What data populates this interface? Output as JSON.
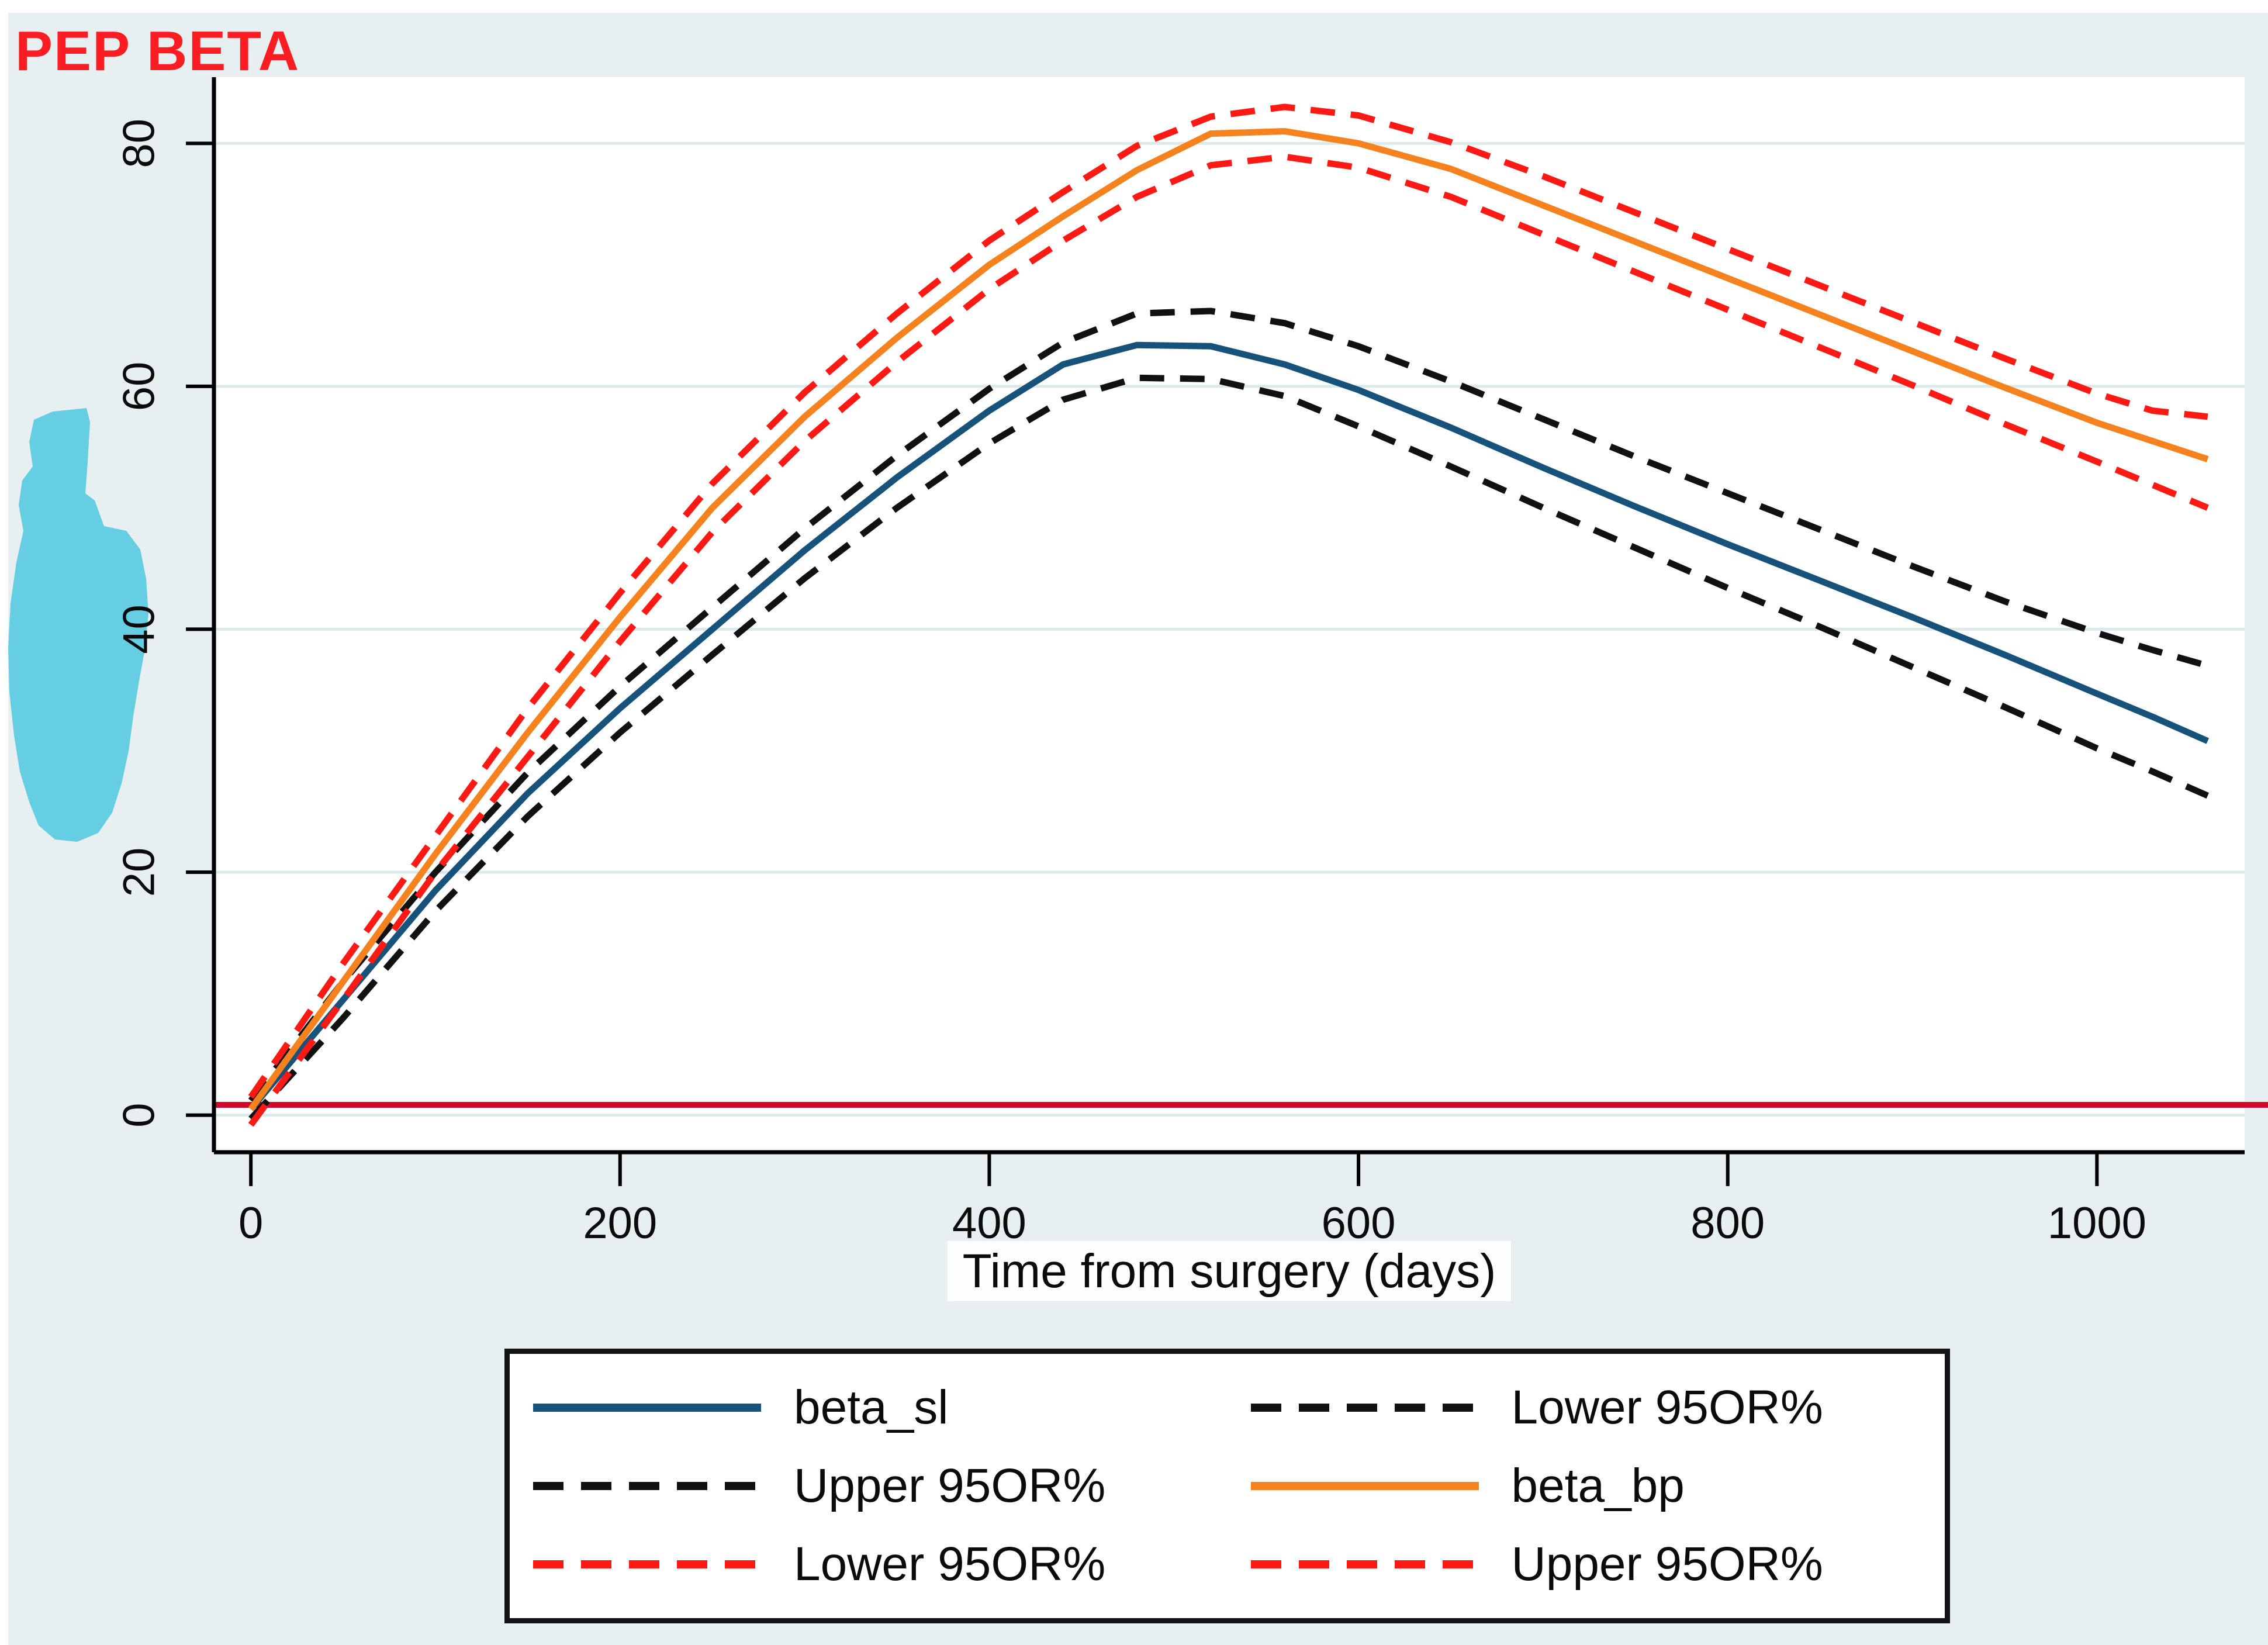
{
  "page": {
    "title": "PEP BETA",
    "title_color": "#fb1d22",
    "background_color": "#e7eff0",
    "plot_background": "#ffffff",
    "gridline_color": "#dbe9eb",
    "axis_color": "#000000"
  },
  "chart_data": {
    "type": "line",
    "title": "PEP BETA",
    "xlabel": "Time from surgery (days)",
    "ylabel": "",
    "xlim": [
      -20,
      1080
    ],
    "ylim": [
      -3.05,
      85.45
    ],
    "x_ticks": [
      "0",
      "200",
      "400",
      "600",
      "800",
      "1000"
    ],
    "x_tick_values": [
      0,
      200,
      400,
      600,
      800,
      1000
    ],
    "y_ticks": [
      "0",
      "20",
      "40",
      "60",
      "80"
    ],
    "y_tick_values": [
      0,
      20,
      40,
      60,
      80
    ],
    "grid": "horizontal",
    "legend_position": "bottom",
    "reference_line": {
      "y": 0.85,
      "color": "#ce0a2c",
      "width": 10
    },
    "x": [
      0,
      50,
      100,
      150,
      200,
      250,
      300,
      350,
      400,
      440,
      480,
      520,
      560,
      600,
      650,
      700,
      750,
      800,
      850,
      900,
      950,
      1000,
      1030,
      1060
    ],
    "series": [
      {
        "name": "beta_sl",
        "color": "#17527a",
        "style": "solid",
        "width": 11,
        "values": [
          0.5,
          9.5,
          18.5,
          26.5,
          33.5,
          40,
          46.5,
          52.5,
          58,
          61.8,
          63.4,
          63.3,
          61.8,
          59.7,
          56.6,
          53.3,
          50.1,
          47,
          44,
          41,
          37.9,
          34.7,
          32.8,
          30.8
        ]
      },
      {
        "name": "Upper 95OR%",
        "color": "#111111",
        "style": "dashed",
        "width": 11,
        "values": [
          1.2,
          11,
          20,
          28.2,
          35.3,
          41.8,
          48.3,
          54.3,
          59.8,
          63.6,
          66,
          66.2,
          65.2,
          63.3,
          60.4,
          57.3,
          54.2,
          51.2,
          48.2,
          45.2,
          42.3,
          39.7,
          38.3,
          37
        ]
      },
      {
        "name": "Lower 95OR%",
        "color": "#111111",
        "style": "dashed",
        "width": 11,
        "values": [
          -0.3,
          8,
          16.8,
          24.6,
          31.5,
          37.9,
          44.2,
          50,
          55.3,
          58.9,
          60.7,
          60.6,
          59.2,
          56.7,
          53.4,
          50,
          46.7,
          43.4,
          40.2,
          36.9,
          33.6,
          30.2,
          28.3,
          26.3
        ]
      },
      {
        "name": "beta_bp",
        "color": "#f5821f",
        "style": "solid",
        "width": 11,
        "values": [
          0.5,
          11,
          21.5,
          31.5,
          41,
          50,
          57.5,
          64,
          70,
          74,
          77.8,
          80.8,
          81,
          80,
          77.9,
          74.9,
          71.9,
          68.9,
          65.9,
          62.9,
          59.9,
          57,
          55.5,
          54
        ]
      },
      {
        "name": "Upper 95OR%",
        "color": "#fe1a14",
        "style": "dashed",
        "width": 11,
        "values": [
          1.5,
          12.5,
          23,
          33.5,
          43,
          52,
          59.5,
          66,
          72,
          76,
          79.8,
          82.2,
          83,
          82.3,
          80.1,
          77.3,
          74.3,
          71.3,
          68.3,
          65.3,
          62.3,
          59.4,
          58,
          57.5
        ]
      },
      {
        "name": "Lower 95OR%",
        "color": "#fe1a14",
        "style": "dashed",
        "width": 11,
        "values": [
          -0.8,
          9.5,
          20,
          29.5,
          39,
          48,
          55.5,
          62,
          68,
          72,
          75.6,
          78.2,
          78.9,
          78,
          75.6,
          72.5,
          69.4,
          66.3,
          63.2,
          60.1,
          56.9,
          53.8,
          51.9,
          50
        ]
      }
    ],
    "legend_entries": [
      {
        "label": "beta_sl",
        "color": "#17527a",
        "style": "solid"
      },
      {
        "label": "Lower 95OR%",
        "color": "#111111",
        "style": "dashed"
      },
      {
        "label": "Upper 95OR%",
        "color": "#111111",
        "style": "dashed"
      },
      {
        "label": "beta_bp",
        "color": "#f5821f",
        "style": "solid"
      },
      {
        "label": "Lower 95OR%",
        "color": "#fe1a14",
        "style": "dashed"
      },
      {
        "label": "Upper 95OR%",
        "color": "#fe1a14",
        "style": "dashed"
      }
    ]
  },
  "artifacts": {
    "highlighter_blob_color": "#66cee2",
    "highlighter_blob_points": [
      [
        90,
        704
      ],
      [
        148,
        698
      ],
      [
        154,
        722
      ],
      [
        150,
        790
      ],
      [
        146,
        844
      ],
      [
        162,
        856
      ],
      [
        178,
        900
      ],
      [
        216,
        908
      ],
      [
        240,
        940
      ],
      [
        250,
        990
      ],
      [
        254,
        1050
      ],
      [
        248,
        1110
      ],
      [
        238,
        1165
      ],
      [
        228,
        1225
      ],
      [
        220,
        1285
      ],
      [
        208,
        1340
      ],
      [
        192,
        1390
      ],
      [
        168,
        1425
      ],
      [
        132,
        1440
      ],
      [
        94,
        1436
      ],
      [
        66,
        1412
      ],
      [
        50,
        1372
      ],
      [
        34,
        1320
      ],
      [
        24,
        1258
      ],
      [
        16,
        1184
      ],
      [
        14,
        1108
      ],
      [
        18,
        1032
      ],
      [
        28,
        962
      ],
      [
        40,
        908
      ],
      [
        32,
        864
      ],
      [
        38,
        822
      ],
      [
        56,
        798
      ],
      [
        50,
        756
      ],
      [
        58,
        718
      ]
    ]
  }
}
